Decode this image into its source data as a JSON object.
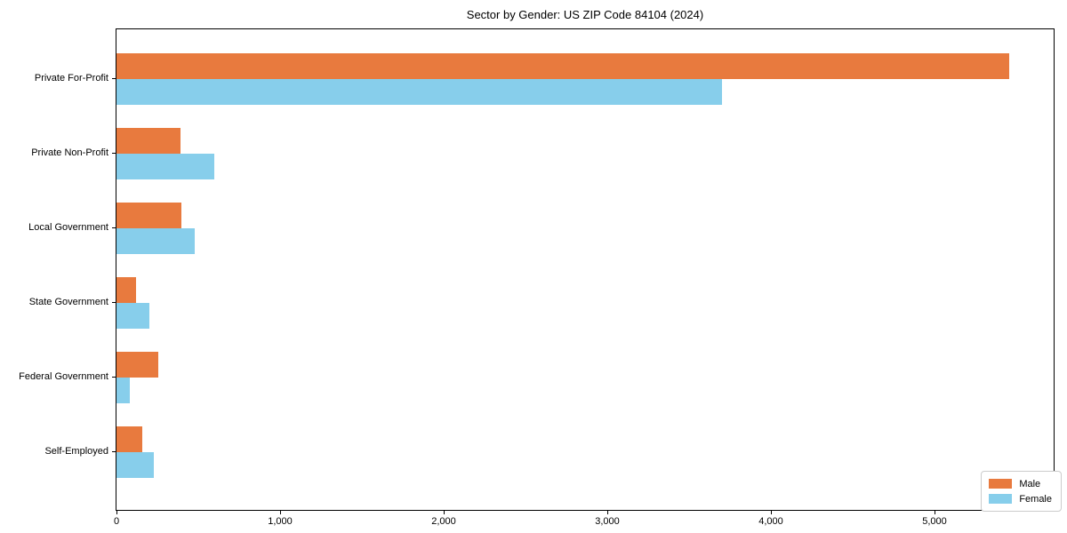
{
  "title": "Sector by Gender: US ZIP Code 84104 (2024)",
  "chart_data": {
    "type": "bar",
    "orientation": "horizontal",
    "title": "Sector by Gender: US ZIP Code 84104 (2024)",
    "categories": [
      "Private For-Profit",
      "Private Non-Profit",
      "Local Government",
      "State Government",
      "Federal Government",
      "Self-Employed"
    ],
    "series": [
      {
        "name": "Male",
        "color": "#E87A3E",
        "values": [
          5460,
          390,
          395,
          120,
          255,
          155
        ]
      },
      {
        "name": "Female",
        "color": "#87CEEB",
        "values": [
          3700,
          600,
          480,
          200,
          80,
          230
        ]
      }
    ],
    "xlim": [
      0,
      5730
    ],
    "xticks": [
      0,
      1000,
      2000,
      3000,
      4000,
      5000
    ],
    "xtick_labels": [
      "0",
      "1,000",
      "2,000",
      "3,000",
      "4,000",
      "5,000"
    ],
    "xlabel": "",
    "ylabel": "",
    "grid": false,
    "legend": {
      "position": "lower right",
      "entries": [
        "Male",
        "Female"
      ]
    }
  }
}
